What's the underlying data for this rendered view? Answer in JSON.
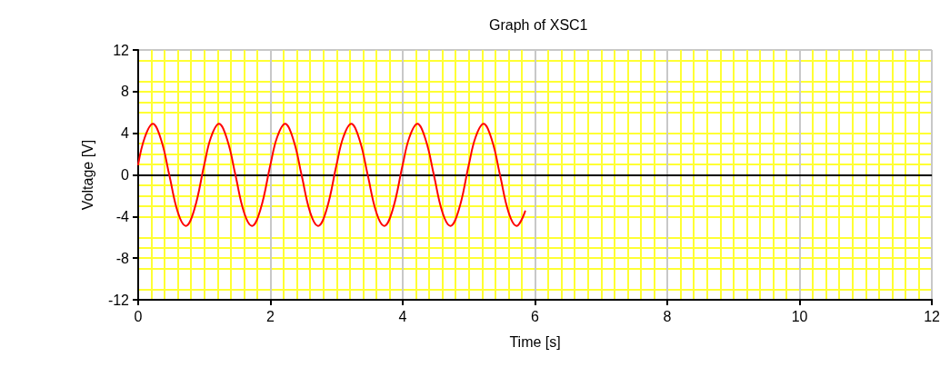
{
  "chart_data": {
    "type": "line",
    "title": "Graph of XSC1",
    "xlabel": "Time [s]",
    "ylabel": "Voltage [V]",
    "x": [
      0,
      0.1,
      0.22,
      0.35,
      0.47,
      0.6,
      0.72,
      0.85,
      1,
      1.1,
      1.22,
      1.35,
      1.47,
      1.6,
      1.72,
      1.85,
      2,
      2.1,
      2.22,
      2.35,
      2.47,
      2.6,
      2.72,
      2.85,
      3,
      3.1,
      3.22,
      3.35,
      3.47,
      3.6,
      3.72,
      3.85,
      4,
      4.1,
      4.22,
      4.35,
      4.47,
      4.6,
      4.72,
      4.85,
      5,
      5.1,
      5.22,
      5.35,
      5.47,
      5.6,
      5.72,
      5.85
    ],
    "series": [
      {
        "color": "#ff0000",
        "values": [
          1,
          3.6,
          4.9,
          3.3,
          0,
          -3.6,
          -4.9,
          -3.3,
          1,
          3.6,
          4.9,
          3.3,
          0,
          -3.6,
          -4.9,
          -3.3,
          1,
          3.6,
          4.9,
          3.3,
          0,
          -3.6,
          -4.9,
          -3.3,
          1,
          3.6,
          4.9,
          3.3,
          0,
          -3.6,
          -4.9,
          -3.3,
          1,
          3.6,
          4.9,
          3.3,
          0,
          -3.6,
          -4.9,
          -3.3,
          1,
          3.6,
          4.9,
          3.3,
          0,
          -3.6,
          -4.9,
          -3.5
        ]
      }
    ],
    "xlim": [
      0,
      12
    ],
    "xticks": [
      0,
      2,
      4,
      6,
      8,
      10,
      12
    ],
    "ylim": [
      -12,
      12
    ],
    "yticks": [
      -12,
      -8,
      -4,
      0,
      4,
      8,
      12
    ],
    "ref_lines": [
      {
        "axis": "y",
        "value": 0,
        "color": "#000000"
      }
    ],
    "grid": true,
    "marker": "none",
    "line_style": "solid"
  }
}
